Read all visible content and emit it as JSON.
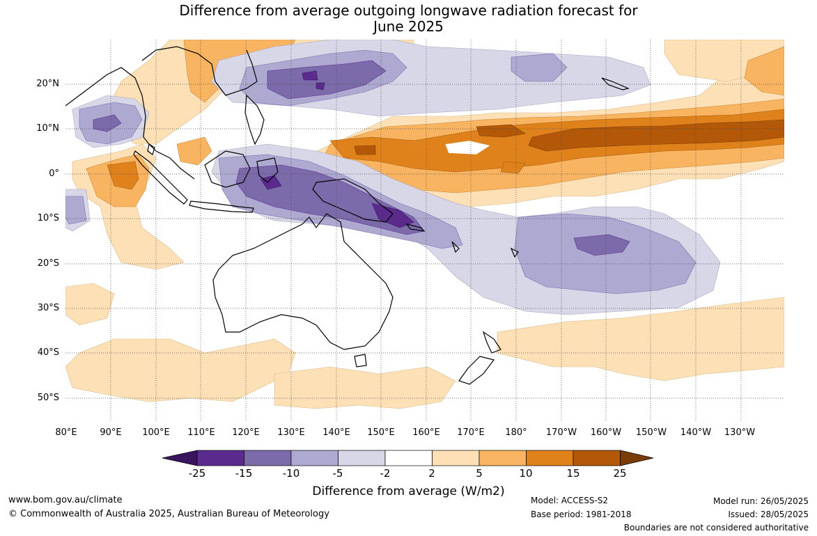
{
  "title_line1": "Difference from average outgoing longwave radiation forecast for",
  "title_line2": "June 2025",
  "map": {
    "lat_labels": [
      "20°N",
      "10°N",
      "0°",
      "10°S",
      "20°S",
      "30°S",
      "40°S",
      "50°S"
    ],
    "lon_labels": [
      "80°E",
      "90°E",
      "100°E",
      "110°E",
      "120°E",
      "130°E",
      "140°E",
      "150°E",
      "160°E",
      "170°E",
      "180°",
      "170°W",
      "160°W",
      "150°W",
      "140°W",
      "130°W"
    ]
  },
  "colorbar": {
    "title": "Difference from average (W/m2)",
    "labels": [
      "-25",
      "-15",
      "-10",
      "-5",
      "-2",
      "2",
      "5",
      "10",
      "15",
      "25"
    ],
    "colors": [
      "#3b1460",
      "#5a2a8c",
      "#7c6bab",
      "#aea9d1",
      "#d7d7e8",
      "#ffffff",
      "#fde0b5",
      "#f8b460",
      "#e0821b",
      "#b35808",
      "#7a3c07"
    ]
  },
  "footer": {
    "website": "www.bom.gov.au/climate",
    "copyright": "© Commonwealth of Australia 2025, Australian Bureau of Meteorology",
    "model": "Model: ACCESS-S2",
    "base_period": "Base period: 1981-2018",
    "model_run": "Model run: 26/05/2025",
    "issued": "Issued: 28/05/2025",
    "disclaimer": "Boundaries are not considered authoritative"
  }
}
